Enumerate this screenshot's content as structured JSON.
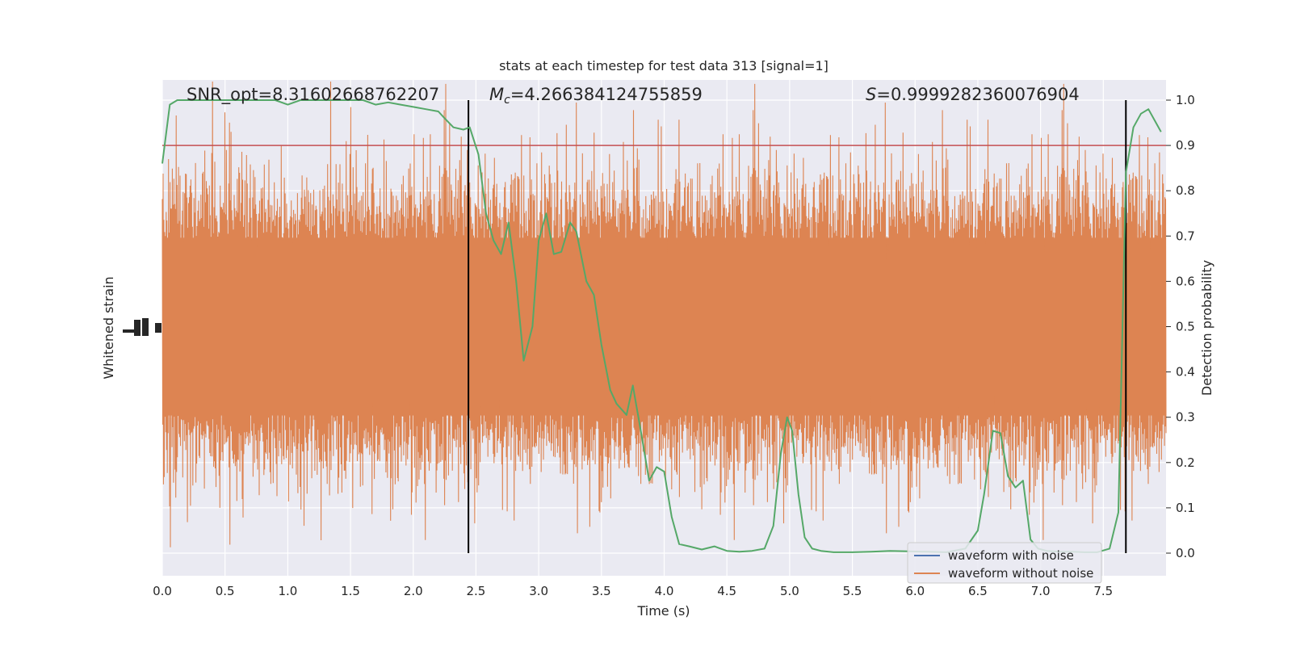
{
  "chart_data": {
    "type": "line",
    "title": "stats at each timestep for test data 313 [signal=1]",
    "xlabel": "Time (s)",
    "ylabel_left": "Whitened strain",
    "ylabel_right": "Detection probability",
    "xlim": [
      0,
      8
    ],
    "ylim_right": [
      -0.05,
      1.05
    ],
    "grid": true,
    "xticks": [
      "0.0",
      "0.5",
      "1.0",
      "1.5",
      "2.0",
      "2.5",
      "3.0",
      "3.5",
      "4.0",
      "4.5",
      "5.0",
      "5.5",
      "6.0",
      "6.5",
      "7.0",
      "7.5"
    ],
    "xtick_values": [
      0,
      0.5,
      1,
      1.5,
      2,
      2.5,
      3,
      3.5,
      4,
      4.5,
      5,
      5.5,
      6,
      6.5,
      7,
      7.5
    ],
    "yticks_right": [
      "0.0",
      "0.1",
      "0.2",
      "0.3",
      "0.4",
      "0.5",
      "0.6",
      "0.7",
      "0.8",
      "0.9",
      "1.0"
    ],
    "ytick_values_right": [
      0,
      0.1,
      0.2,
      0.3,
      0.4,
      0.5,
      0.6,
      0.7,
      0.8,
      0.9,
      1.0
    ],
    "annotations": {
      "snr": "SNR_opt=8.31602668762207",
      "mc_symbol": "M",
      "mc_sub": "c",
      "mc_value": "=4.266384124755859",
      "s_symbol": "S",
      "s_value": "=0.9999282360076904"
    },
    "threshold": {
      "value": 0.9,
      "color": "#c44e52"
    },
    "vlines": [
      2.44,
      7.68
    ],
    "legend": {
      "placement": "lower-right",
      "entries": [
        {
          "label": "waveform with noise",
          "color": "#4c72b0"
        },
        {
          "label": "waveform without noise",
          "color": "#dd8452"
        }
      ]
    },
    "series": [
      {
        "color": "#55a868",
        "axis": "right",
        "x": [
          0.0,
          0.06,
          0.12,
          0.2,
          0.3,
          0.4,
          0.5,
          0.6,
          0.7,
          0.8,
          0.9,
          1.0,
          1.1,
          1.2,
          1.3,
          1.4,
          1.5,
          1.6,
          1.7,
          1.8,
          1.9,
          2.0,
          2.1,
          2.2,
          2.25,
          2.32,
          2.4,
          2.45,
          2.52,
          2.58,
          2.64,
          2.7,
          2.76,
          2.82,
          2.88,
          2.95,
          3.0,
          3.06,
          3.12,
          3.18,
          3.25,
          3.3,
          3.38,
          3.44,
          3.5,
          3.57,
          3.62,
          3.7,
          3.75,
          3.82,
          3.88,
          3.94,
          4.0,
          4.06,
          4.12,
          4.2,
          4.3,
          4.4,
          4.5,
          4.6,
          4.7,
          4.8,
          4.87,
          4.93,
          4.98,
          5.02,
          5.07,
          5.12,
          5.18,
          5.25,
          5.35,
          5.5,
          5.65,
          5.8,
          5.95,
          6.1,
          6.25,
          6.4,
          6.5,
          6.55,
          6.62,
          6.68,
          6.74,
          6.8,
          6.86,
          6.92,
          6.98,
          7.05,
          7.15,
          7.25,
          7.35,
          7.45,
          7.55,
          7.62,
          7.68,
          7.74,
          7.8,
          7.86,
          7.92,
          7.96
        ],
        "y": [
          0.86,
          0.99,
          1.0,
          1.0,
          1.0,
          1.0,
          1.0,
          1.0,
          1.0,
          1.0,
          1.0,
          0.99,
          1.0,
          1.0,
          1.0,
          1.0,
          1.0,
          1.0,
          0.99,
          0.995,
          0.99,
          0.985,
          0.98,
          0.975,
          0.96,
          0.94,
          0.935,
          0.94,
          0.88,
          0.75,
          0.69,
          0.66,
          0.73,
          0.6,
          0.425,
          0.5,
          0.69,
          0.75,
          0.66,
          0.665,
          0.73,
          0.71,
          0.6,
          0.57,
          0.46,
          0.36,
          0.33,
          0.305,
          0.37,
          0.26,
          0.16,
          0.19,
          0.18,
          0.08,
          0.02,
          0.015,
          0.008,
          0.015,
          0.005,
          0.003,
          0.005,
          0.01,
          0.06,
          0.22,
          0.3,
          0.27,
          0.13,
          0.035,
          0.01,
          0.005,
          0.002,
          0.002,
          0.003,
          0.005,
          0.004,
          0.003,
          0.002,
          0.01,
          0.05,
          0.13,
          0.27,
          0.265,
          0.17,
          0.145,
          0.16,
          0.03,
          0.01,
          0.005,
          0.003,
          0.003,
          0.002,
          0.002,
          0.01,
          0.09,
          0.84,
          0.94,
          0.97,
          0.98,
          0.95,
          0.93
        ]
      }
    ]
  }
}
